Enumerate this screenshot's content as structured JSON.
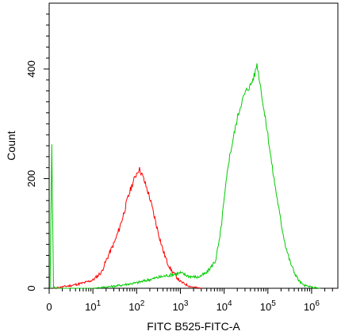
{
  "chart_data": {
    "type": "line",
    "title": "",
    "xlabel": "FITC B525-FITC-A",
    "ylabel": "Count",
    "x_scale": "log",
    "xlim_decades": [
      0,
      6.6
    ],
    "ylim": [
      0,
      520
    ],
    "x_ticks": [
      {
        "value": 0,
        "base": "0",
        "exp": ""
      },
      {
        "value": 1,
        "base": "10",
        "exp": "1"
      },
      {
        "value": 2,
        "base": "10",
        "exp": "2"
      },
      {
        "value": 3,
        "base": "10",
        "exp": "3"
      },
      {
        "value": 4,
        "base": "10",
        "exp": "4"
      },
      {
        "value": 5,
        "base": "10",
        "exp": "5"
      },
      {
        "value": 6,
        "base": "10",
        "exp": "6"
      }
    ],
    "y_ticks": [
      {
        "value": 0,
        "label": "0"
      },
      {
        "value": 200,
        "label": "200"
      },
      {
        "value": 400,
        "label": "400"
      }
    ],
    "grid": false,
    "legend": "none",
    "series": [
      {
        "color": "#ff0000",
        "x": [
          0.1,
          0.5,
          0.8,
          1.0,
          1.1,
          1.2,
          1.3,
          1.4,
          1.5,
          1.6,
          1.7,
          1.8,
          1.9,
          2.0,
          2.05,
          2.1,
          2.2,
          2.3,
          2.4,
          2.5,
          2.6,
          2.7,
          2.8,
          2.9,
          3.0,
          3.1,
          3.2,
          3.3,
          3.5
        ],
        "y": [
          0,
          5,
          10,
          15,
          22,
          30,
          50,
          68,
          85,
          108,
          135,
          165,
          190,
          210,
          218,
          212,
          190,
          165,
          132,
          100,
          70,
          47,
          32,
          22,
          12,
          8,
          4,
          2,
          0
        ]
      },
      {
        "color": "#00cc00",
        "x": [
          0.02,
          0.06,
          0.1,
          0.2,
          0.5,
          1.0,
          1.5,
          2.0,
          2.5,
          3.0,
          3.2,
          3.4,
          3.6,
          3.8,
          3.9,
          4.0,
          4.1,
          4.2,
          4.3,
          4.4,
          4.5,
          4.6,
          4.7,
          4.75,
          4.8,
          4.85,
          4.9,
          5.0,
          5.1,
          5.2,
          5.3,
          5.4,
          5.5,
          5.6,
          5.7,
          5.8,
          6.0,
          6.2
        ],
        "y": [
          0,
          260,
          2,
          0,
          0,
          0,
          4,
          10,
          20,
          28,
          22,
          20,
          28,
          50,
          90,
          160,
          230,
          270,
          310,
          340,
          360,
          370,
          390,
          410,
          385,
          360,
          330,
          280,
          220,
          170,
          120,
          80,
          50,
          30,
          15,
          6,
          2,
          0
        ]
      }
    ]
  }
}
